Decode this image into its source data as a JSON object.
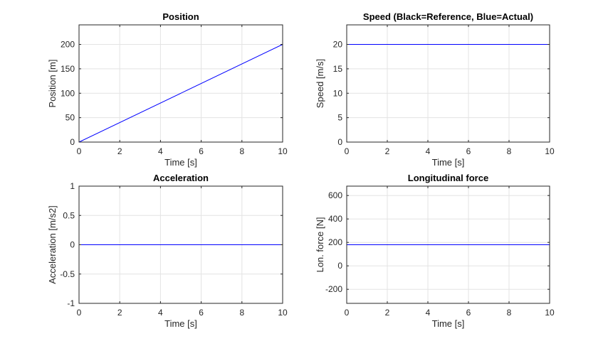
{
  "chart_data": [
    {
      "type": "line",
      "title": "Position",
      "xlabel": "Time [s]",
      "ylabel": "Position [m]",
      "xlim": [
        0,
        10
      ],
      "ylim": [
        0,
        240
      ],
      "xticks": [
        0,
        2,
        4,
        6,
        8,
        10
      ],
      "yticks": [
        0,
        50,
        100,
        150,
        200
      ],
      "grid": true,
      "series": [
        {
          "color": "#0000ff",
          "x": [
            0,
            10
          ],
          "y": [
            0,
            200
          ]
        }
      ]
    },
    {
      "type": "line",
      "title": "Speed (Black=Reference, Blue=Actual)",
      "xlabel": "Time [s]",
      "ylabel": "Speed [m/s]",
      "xlim": [
        0,
        10
      ],
      "ylim": [
        0,
        24
      ],
      "xticks": [
        0,
        2,
        4,
        6,
        8,
        10
      ],
      "yticks": [
        0,
        5,
        10,
        15,
        20
      ],
      "grid": true,
      "series": [
        {
          "color": "#000000",
          "x": [
            0,
            10
          ],
          "y": [
            20,
            20
          ]
        },
        {
          "color": "#0000ff",
          "x": [
            0,
            10
          ],
          "y": [
            20,
            20
          ]
        }
      ]
    },
    {
      "type": "line",
      "title": "Acceleration",
      "xlabel": "Time [s]",
      "ylabel": "Acceleration [m/s2]",
      "xlim": [
        0,
        10
      ],
      "ylim": [
        -1,
        1
      ],
      "xticks": [
        0,
        2,
        4,
        6,
        8,
        10
      ],
      "yticks": [
        -1,
        -0.5,
        0,
        0.5,
        1
      ],
      "grid": true,
      "series": [
        {
          "color": "#0000ff",
          "x": [
            0,
            10
          ],
          "y": [
            0,
            0
          ]
        }
      ]
    },
    {
      "type": "line",
      "title": "Longitudinal force",
      "xlabel": "Time [s]",
      "ylabel": "Lon. force [N]",
      "xlim": [
        0,
        10
      ],
      "ylim": [
        -320,
        680
      ],
      "xticks": [
        0,
        2,
        4,
        6,
        8,
        10
      ],
      "yticks": [
        -200,
        0,
        200,
        400,
        600
      ],
      "grid": true,
      "series": [
        {
          "color": "#0000ff",
          "x": [
            0,
            10
          ],
          "y": [
            180,
            180
          ]
        }
      ]
    }
  ]
}
